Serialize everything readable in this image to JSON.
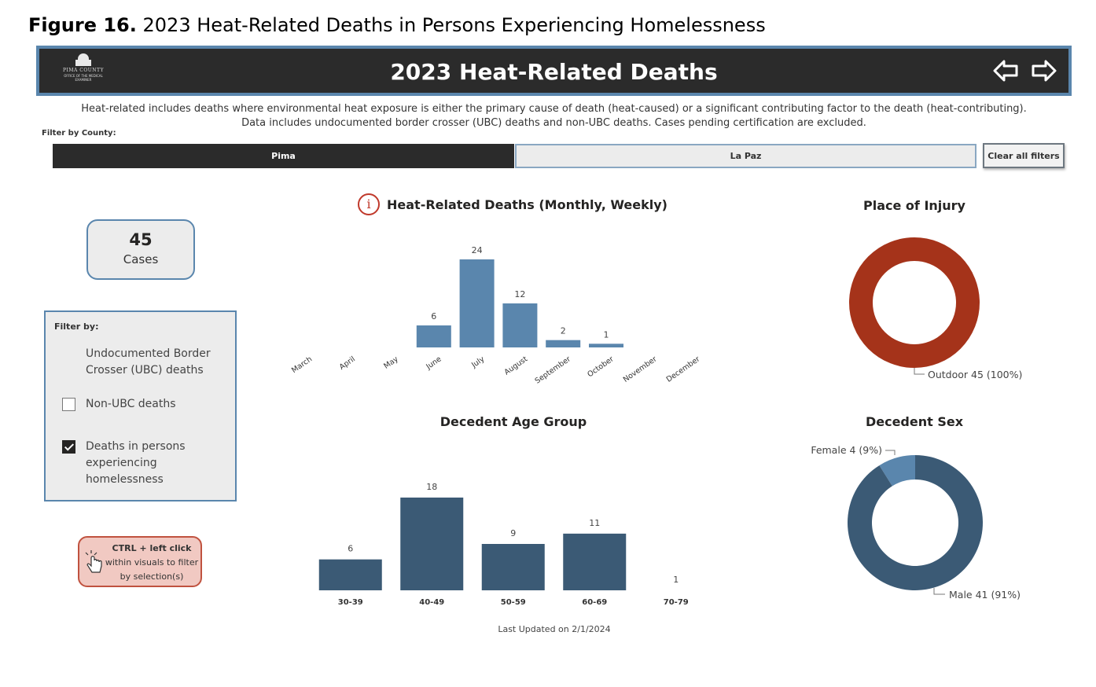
{
  "figure": {
    "label": "Figure 16.",
    "text": "2023 Heat-Related Deaths in Persons Experiencing Homelessness"
  },
  "header": {
    "title": "2023 Heat-Related Deaths",
    "logo_text": "PIMA COUNTY",
    "logo_subtext": "OFFICE OF THE MEDICAL EXAMINER"
  },
  "description": {
    "line1": "Heat-related includes deaths where environmental heat exposure is either the primary cause of death (heat-caused) or a significant contributing factor to the death (heat-contributing).",
    "line2": "Data includes undocumented border crosser (UBC) deaths and non-UBC deaths. Cases pending certification are excluded."
  },
  "county_filter": {
    "label": "Filter by County:",
    "options": [
      "Pima",
      "La Paz"
    ],
    "selected": "Pima",
    "clear_label": "Clear all filters"
  },
  "card": {
    "value": "45",
    "label": "Cases"
  },
  "filter_panel": {
    "title": "Filter by:",
    "options": [
      {
        "label": "Undocumented Border Crosser (UBC) deaths",
        "checked": false
      },
      {
        "label": "Non-UBC deaths",
        "checked": false
      },
      {
        "label": "Deaths in persons experiencing homelessness",
        "checked": true
      }
    ]
  },
  "tip": {
    "line1": "CTRL + left click",
    "line2": "within visuals to filter",
    "line3": "by selection(s)"
  },
  "chart_data": [
    {
      "type": "bar",
      "title": "Heat-Related Deaths (Monthly, Weekly)",
      "categories": [
        "March",
        "April",
        "May",
        "June",
        "July",
        "August",
        "September",
        "October",
        "November",
        "December"
      ],
      "values": [
        null,
        null,
        null,
        6,
        24,
        12,
        2,
        1,
        null,
        null
      ],
      "color": "#5a86ad"
    },
    {
      "type": "pie",
      "title": "Place of Injury",
      "labels": [
        "Outdoor"
      ],
      "values": [
        45
      ],
      "percents": [
        "100%"
      ],
      "colors": [
        "#a5331a"
      ]
    },
    {
      "type": "bar",
      "title": "Decedent Age Group",
      "categories": [
        "30-39",
        "40-49",
        "50-59",
        "60-69",
        "70-79"
      ],
      "values": [
        6,
        18,
        9,
        11,
        1
      ],
      "color": "#3b5a75"
    },
    {
      "type": "pie",
      "title": "Decedent Sex",
      "labels": [
        "Female",
        "Male"
      ],
      "values": [
        4,
        41
      ],
      "percents": [
        "9%",
        "91%"
      ],
      "colors": [
        "#5a86ad",
        "#3b5a75"
      ]
    }
  ],
  "footer": {
    "last_updated": "Last Updated on 2/1/2024"
  }
}
